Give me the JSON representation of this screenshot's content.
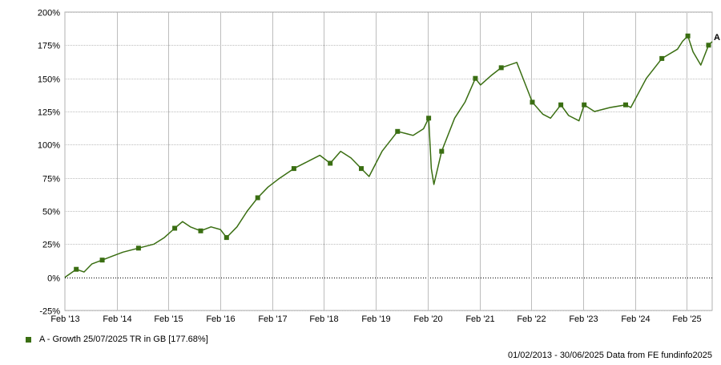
{
  "legend": {
    "label": "A - Growth 25/07/2025 TR in GB [177.68%]",
    "color": "#3a6e12"
  },
  "footer": {
    "text": "01/02/2013 - 30/06/2025 Data from FE fundinfo2025"
  },
  "chart_data": {
    "type": "line",
    "title": "",
    "xlabel": "",
    "ylabel": "",
    "ylim": [
      -25,
      200
    ],
    "y_ticks": [
      -25,
      0,
      25,
      50,
      75,
      100,
      125,
      150,
      175,
      200
    ],
    "y_tick_labels": [
      "-25%",
      "0%",
      "25%",
      "50%",
      "75%",
      "100%",
      "125%",
      "150%",
      "175%",
      "200%"
    ],
    "x_ticks": [
      "Feb '13",
      "Feb '14",
      "Feb '15",
      "Feb '16",
      "Feb '17",
      "Feb '18",
      "Feb '19",
      "Feb '20",
      "Feb '21",
      "Feb '22",
      "Feb '23",
      "Feb '24",
      "Feb '25"
    ],
    "xlim_years": [
      2013.08,
      2025.57
    ],
    "grid": true,
    "zero_line": true,
    "series": [
      {
        "name": "A",
        "color": "#3a6e12",
        "end_label": "A",
        "x": [
          2013.08,
          2013.3,
          2013.45,
          2013.6,
          2013.8,
          2014.0,
          2014.2,
          2014.5,
          2014.8,
          2015.0,
          2015.2,
          2015.35,
          2015.5,
          2015.7,
          2015.9,
          2016.08,
          2016.2,
          2016.4,
          2016.6,
          2016.8,
          2017.0,
          2017.2,
          2017.5,
          2017.8,
          2018.0,
          2018.2,
          2018.4,
          2018.6,
          2018.8,
          2018.95,
          2019.2,
          2019.5,
          2019.8,
          2020.0,
          2020.1,
          2020.15,
          2020.2,
          2020.35,
          2020.6,
          2020.8,
          2021.0,
          2021.1,
          2021.3,
          2021.5,
          2021.8,
          2021.95,
          2022.1,
          2022.3,
          2022.45,
          2022.65,
          2022.8,
          2023.0,
          2023.1,
          2023.3,
          2023.6,
          2023.9,
          2024.0,
          2024.3,
          2024.6,
          2024.9,
          2025.0,
          2025.1,
          2025.2,
          2025.35,
          2025.5,
          2025.57
        ],
        "y": [
          0,
          6,
          4,
          10,
          13,
          16,
          19,
          22,
          25,
          30,
          37,
          42,
          38,
          35,
          38,
          36,
          30,
          38,
          50,
          60,
          68,
          74,
          82,
          88,
          92,
          86,
          95,
          90,
          82,
          76,
          95,
          110,
          107,
          112,
          120,
          82,
          70,
          95,
          120,
          132,
          150,
          145,
          152,
          158,
          162,
          147,
          132,
          123,
          120,
          130,
          122,
          118,
          130,
          125,
          128,
          130,
          128,
          150,
          165,
          172,
          178,
          182,
          170,
          160,
          175,
          177.68
        ]
      }
    ]
  }
}
